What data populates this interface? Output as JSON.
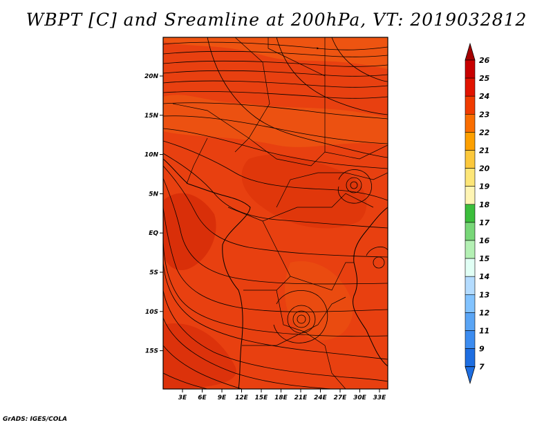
{
  "title": "WBPT [C] and Sreamline at 200hPa, VT: 2019032812",
  "credit": "GrADS: IGES/COLA",
  "map": {
    "lon_ticks": [
      "3E",
      "6E",
      "9E",
      "12E",
      "15E",
      "18E",
      "21E",
      "24E",
      "27E",
      "30E",
      "33E"
    ],
    "lat_ticks": [
      "20N",
      "15N",
      "10N",
      "5N",
      "EQ",
      "5S",
      "10S",
      "15S"
    ],
    "base_color": "#e84010"
  },
  "colorbar": {
    "labels": [
      "26",
      "25",
      "24",
      "23",
      "22",
      "21",
      "20",
      "19",
      "18",
      "17",
      "16",
      "15",
      "14",
      "13",
      "12",
      "11",
      "9",
      "7"
    ],
    "colors": [
      "#a50000",
      "#c80000",
      "#e11400",
      "#f03c00",
      "#fa6e00",
      "#fda000",
      "#fcc83c",
      "#fde678",
      "#fff5b4",
      "#3cbe3c",
      "#78d778",
      "#b4f0b4",
      "#e1fff5",
      "#b4dcff",
      "#82c3ff",
      "#5aa5f5",
      "#3c8cf0",
      "#1e6ee1"
    ]
  }
}
